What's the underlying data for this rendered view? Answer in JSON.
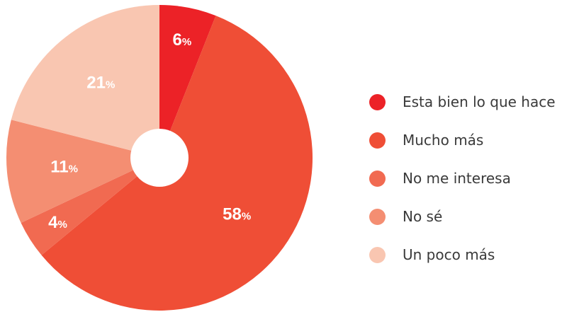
{
  "chart_data": {
    "type": "pie",
    "donut": true,
    "start_angle_deg": 0,
    "direction": "clockwise",
    "categories": [
      "Esta bien lo que hace",
      "Mucho más",
      "No me interesa",
      "No sé",
      "Un poco más"
    ],
    "values": [
      6,
      58,
      4,
      11,
      21
    ],
    "value_labels": [
      "6",
      "58",
      "4",
      "11",
      "21"
    ],
    "unit": "%",
    "colors": [
      "#EC2227",
      "#EF4E36",
      "#F16A51",
      "#F48E72",
      "#F9C6B1"
    ],
    "legend_position": "right"
  }
}
